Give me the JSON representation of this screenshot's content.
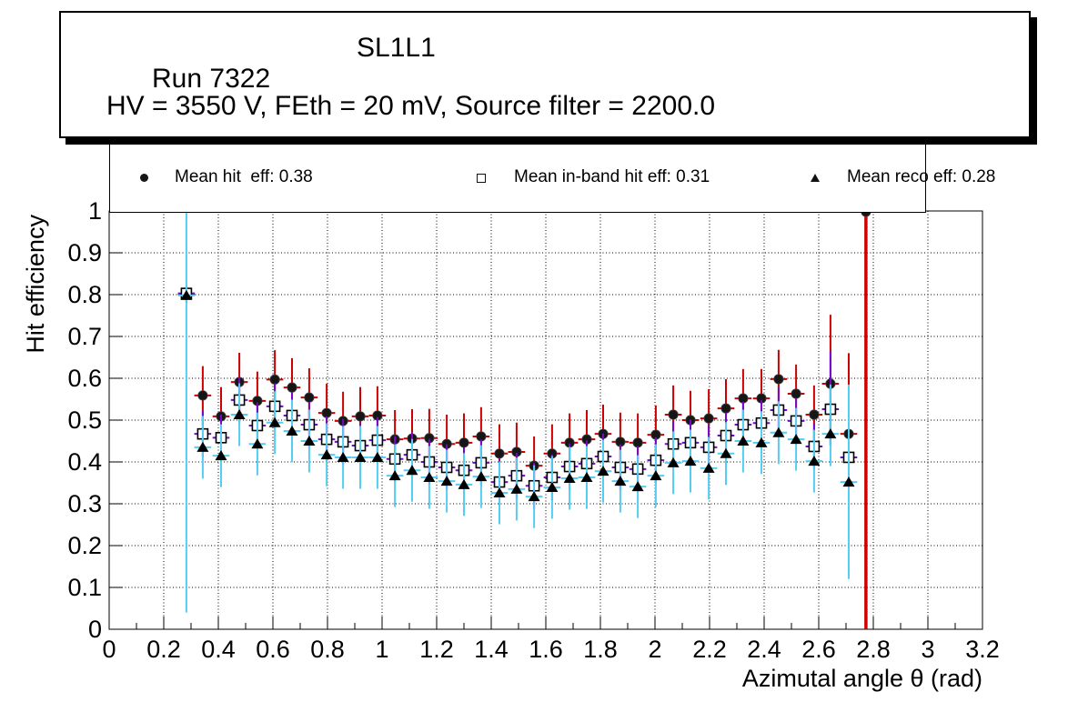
{
  "title_box": {
    "run": "Run 7322",
    "detector": "SL1L1",
    "conditions": "HV = 3550 V, FEth = 20 mV, Source filter = 2200.0"
  },
  "legend": {
    "entries": [
      {
        "marker": "filled-circle-icon",
        "label": "Mean hit  eff: 0.38"
      },
      {
        "marker": "open-square-icon",
        "label": "Mean in-band hit eff: 0.31"
      },
      {
        "marker": "filled-triangle-icon",
        "label": "Mean reco eff: 0.28"
      }
    ]
  },
  "colors": {
    "hit_error": "#cc0000",
    "inband_error": "#7708c9",
    "reco_error": "#55ccf2",
    "circle_marker": "#161616",
    "square_marker_fill": "#ffffff",
    "square_marker_edge": "#000000",
    "triangle_marker": "#000000",
    "frame": "#000000",
    "grid": "#000000",
    "background": "#ffffff"
  },
  "chart_data": {
    "type": "scatter",
    "title": "Run 7322 SL1L1",
    "xlabel": "Azimutal angle θ (rad)",
    "ylabel": "Hit efficiency",
    "xlim": [
      0,
      3.2
    ],
    "ylim": [
      0,
      1
    ],
    "grid": true,
    "legend_position": "top",
    "x_tick_values": [
      0,
      0.2,
      0.4,
      0.6,
      0.8,
      1,
      1.2,
      1.4,
      1.6,
      1.8,
      2,
      2.2,
      2.4,
      2.6,
      2.8,
      3,
      3.2
    ],
    "x_tick_labels": [
      "0",
      "0.2",
      "0.4",
      "0.6",
      "0.8",
      "1",
      "1.2",
      "1.4",
      "1.6",
      "1.8",
      "2",
      "2.2",
      "2.4",
      "2.6",
      "2.8",
      "3",
      "3.2"
    ],
    "x_minor_step": 0.1,
    "y_tick_values": [
      0,
      0.1,
      0.2,
      0.3,
      0.4,
      0.5,
      0.6,
      0.7,
      0.8,
      0.9,
      1
    ],
    "y_tick_labels": [
      "0",
      "0.1",
      "0.2",
      "0.3",
      "0.4",
      "0.5",
      "0.6",
      "0.7",
      "0.8",
      "0.9",
      "1"
    ],
    "x": [
      0.283,
      0.343,
      0.41,
      0.477,
      0.543,
      0.607,
      0.67,
      0.733,
      0.797,
      0.857,
      0.92,
      0.983,
      1.047,
      1.11,
      1.173,
      1.237,
      1.3,
      1.363,
      1.43,
      1.493,
      1.557,
      1.623,
      1.687,
      1.75,
      1.81,
      1.873,
      1.937,
      2.003,
      2.067,
      2.13,
      2.197,
      2.26,
      2.323,
      2.39,
      2.453,
      2.517,
      2.583,
      2.643,
      2.71,
      2.773
    ],
    "series": [
      {
        "id": "hit",
        "name": "Mean hit eff",
        "mean": 0.38,
        "marker": "filled-circle",
        "error_color": "#cc0000",
        "values": [
          0.8,
          0.559,
          0.509,
          0.591,
          0.546,
          0.597,
          0.578,
          0.554,
          0.517,
          0.498,
          0.509,
          0.511,
          0.454,
          0.456,
          0.457,
          0.443,
          0.446,
          0.461,
          0.42,
          0.424,
          0.391,
          0.42,
          0.446,
          0.454,
          0.467,
          0.448,
          0.446,
          0.465,
          0.513,
          0.5,
          0.504,
          0.528,
          0.552,
          0.552,
          0.598,
          0.563,
          0.513,
          0.587,
          0.467,
          0.998
        ]
      },
      {
        "id": "inband",
        "name": "Mean in-band hit eff",
        "mean": 0.31,
        "marker": "open-square",
        "error_color": "#7708c9",
        "values": [
          0.803,
          0.467,
          0.458,
          0.548,
          0.487,
          0.533,
          0.511,
          0.489,
          0.454,
          0.448,
          0.439,
          0.452,
          0.407,
          0.417,
          0.4,
          0.387,
          0.38,
          0.398,
          0.352,
          0.367,
          0.343,
          0.363,
          0.389,
          0.396,
          0.413,
          0.387,
          0.383,
          0.404,
          0.443,
          0.446,
          0.435,
          0.463,
          0.489,
          0.493,
          0.524,
          0.498,
          0.437,
          0.526,
          0.411,
          null
        ]
      },
      {
        "id": "reco",
        "name": "Mean reco eff",
        "mean": 0.28,
        "marker": "filled-triangle",
        "error_color": "#55ccf2",
        "values": [
          0.798,
          0.435,
          0.415,
          0.513,
          0.443,
          0.494,
          0.474,
          0.45,
          0.417,
          0.411,
          0.411,
          0.411,
          0.367,
          0.38,
          0.363,
          0.354,
          0.346,
          0.365,
          0.326,
          0.335,
          0.317,
          0.339,
          0.361,
          0.363,
          0.378,
          0.354,
          0.341,
          0.367,
          0.398,
          0.402,
          0.385,
          0.42,
          0.45,
          0.446,
          0.47,
          0.454,
          0.402,
          0.467,
          0.352,
          null
        ]
      }
    ],
    "default_errors": {
      "hit": 0.07,
      "inband": 0.055,
      "reco": 0.075,
      "x": 0.031
    },
    "error_overrides": {
      "0": {
        "hit": [
          0.78,
          0.82
        ],
        "inband": [
          0.787,
          0.818
        ],
        "reco": [
          0.04,
          1.0
        ]
      },
      "37": {
        "hit": [
          0.44,
          0.752
        ],
        "inband": [
          0.44,
          0.665
        ],
        "reco": [
          0.39,
          0.585
        ]
      },
      "38": {
        "hit": [
          0.33,
          0.66
        ],
        "inband": [
          0.31,
          0.56
        ],
        "reco": [
          0.12,
          0.585
        ]
      },
      "39": {
        "hit": [
          0.0,
          1.0
        ],
        "hit_lw": 3.5
      }
    }
  }
}
